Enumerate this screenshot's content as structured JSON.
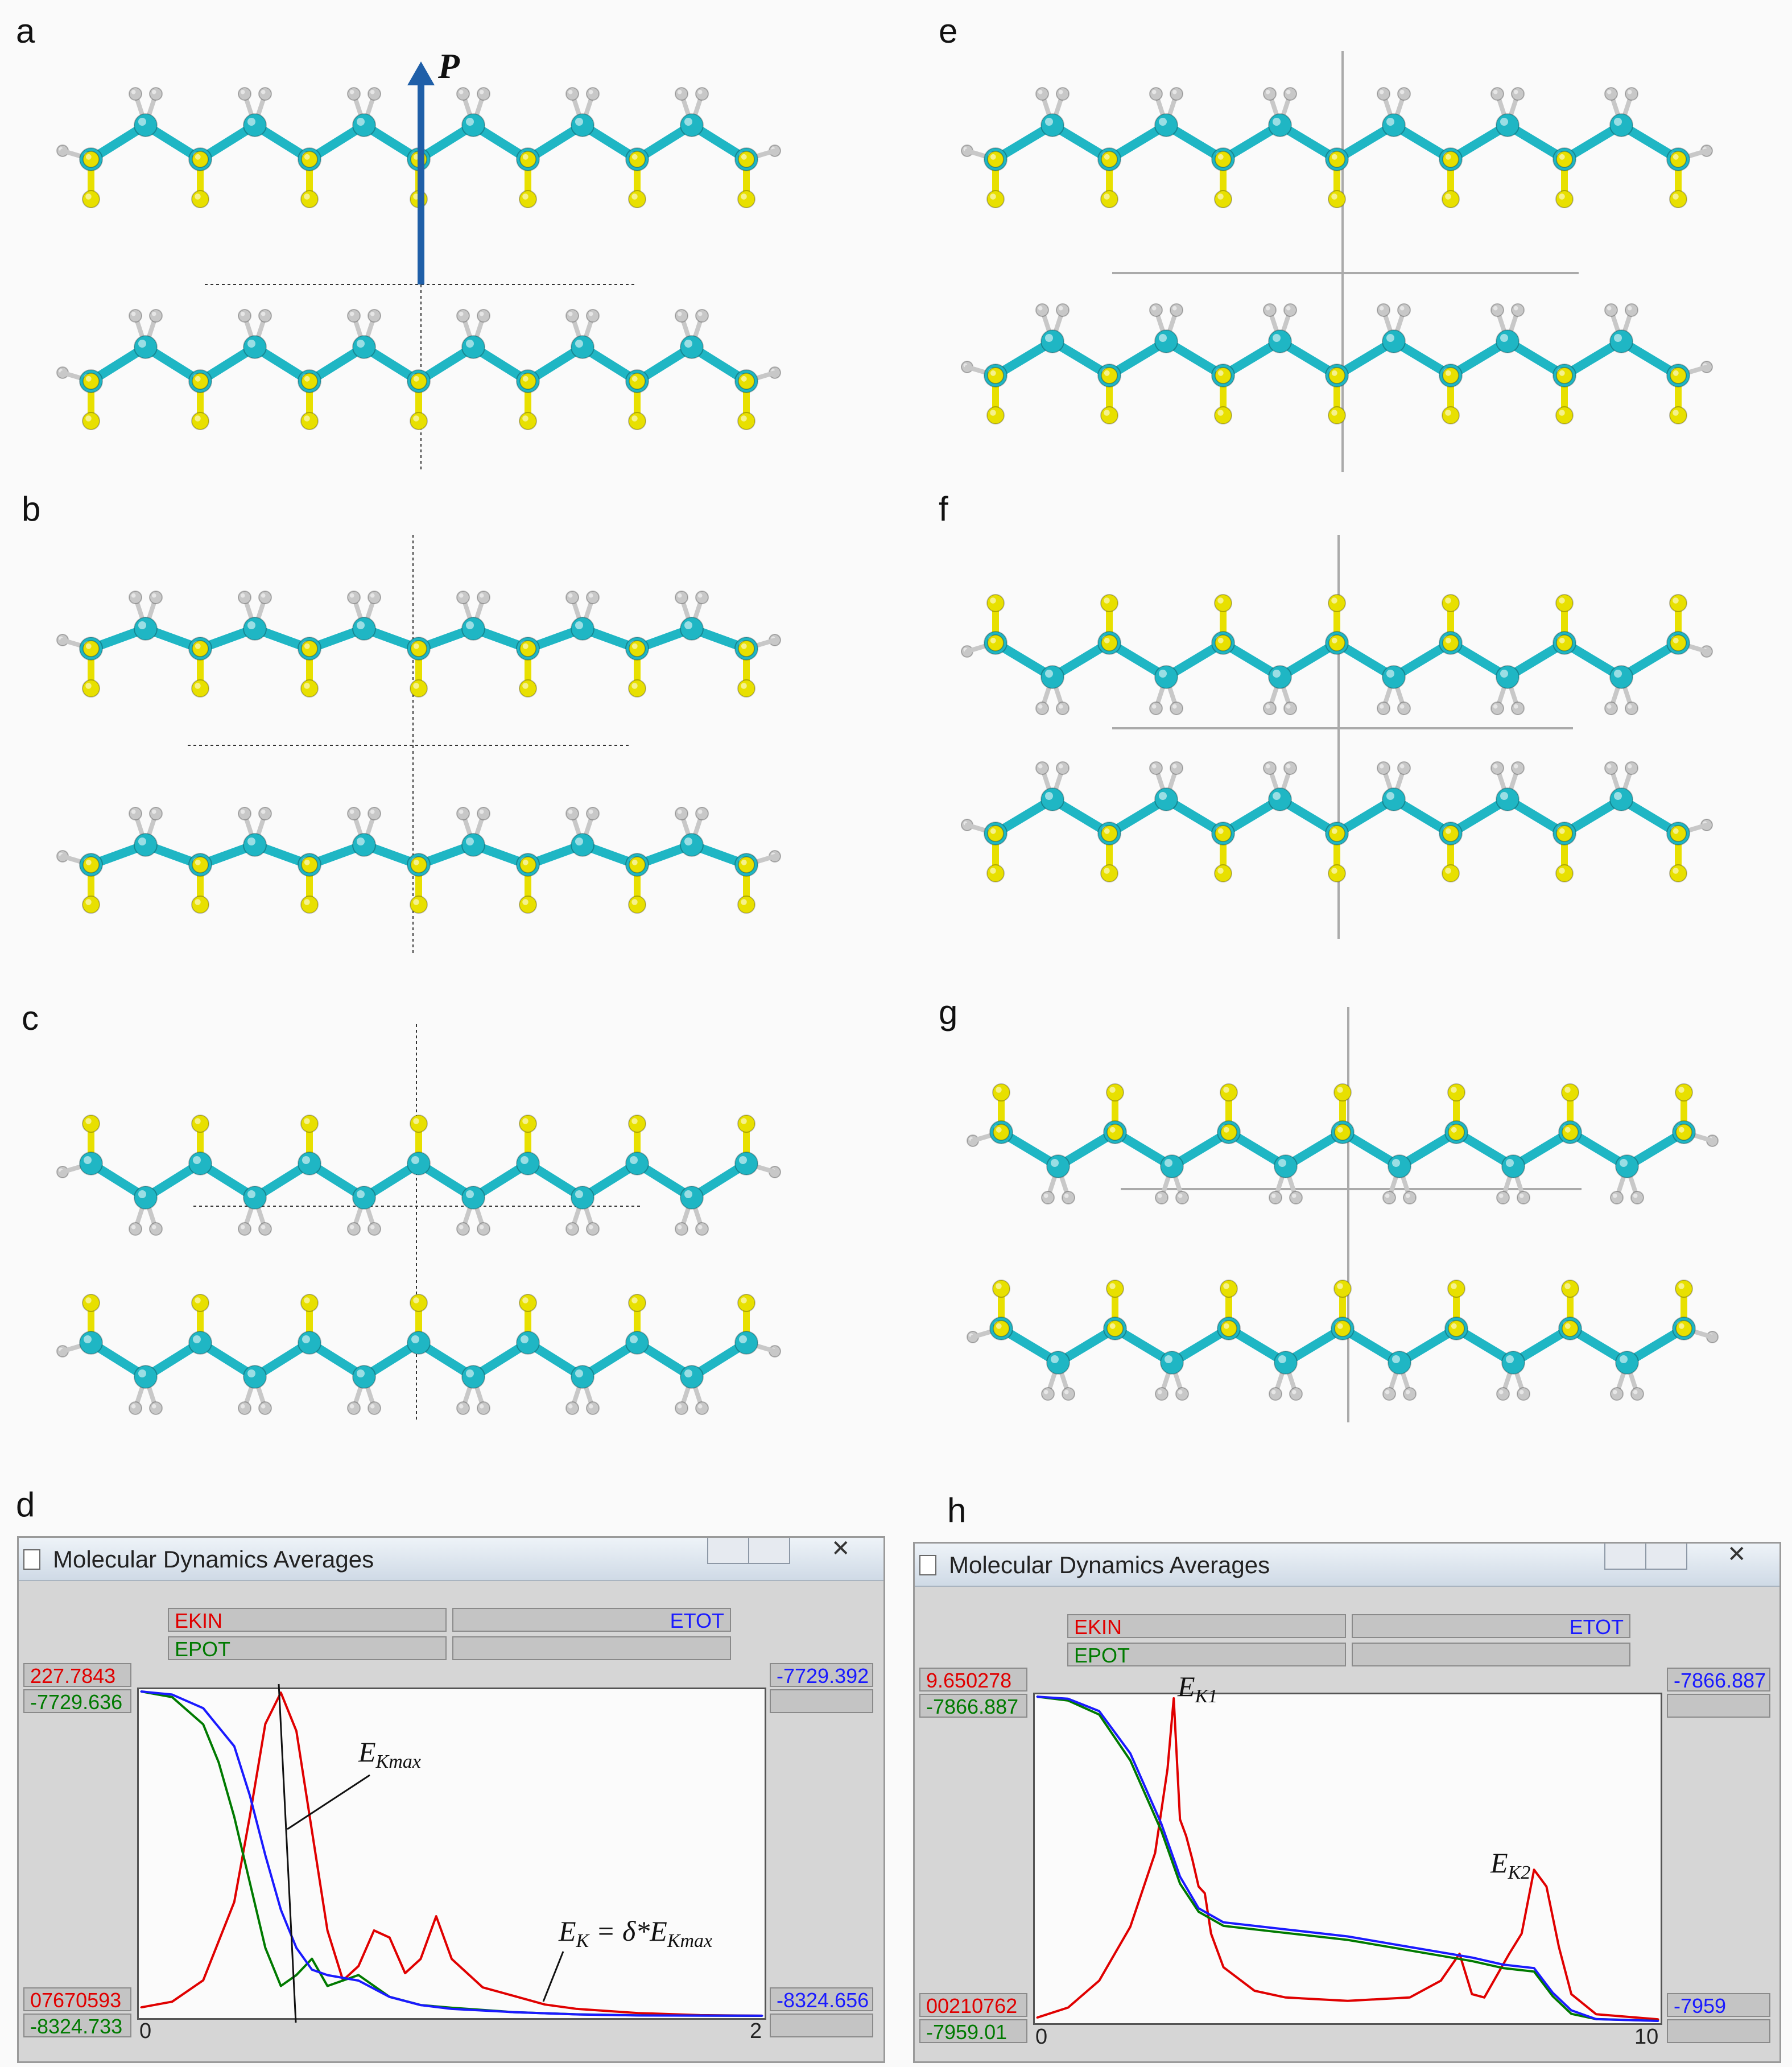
{
  "panel_letters": [
    "a",
    "b",
    "c",
    "d",
    "e",
    "f",
    "g",
    "h"
  ],
  "vector_label": "P",
  "colors": {
    "carbon": "#1fb6c4",
    "sulfur": "#e8e000",
    "hydrogen": "#c8c8c8",
    "ekin": "#e00000",
    "epot": "#007a00",
    "etot": "#1a1aff",
    "arrow": "#1f5fa8"
  },
  "window_d": {
    "title": "Molecular Dynamics Averages",
    "legend": {
      "ekin": "EKIN",
      "etot": "ETOT",
      "epot": "EPOT"
    },
    "left_top_ekin": "227.7843",
    "left_top_epot": "-7729.636",
    "left_bottom_ekin": "07670593",
    "left_bottom_epot": "-8324.733",
    "right_top_etot": "-7729.392",
    "right_bottom_etot": "-8324.656",
    "x_min": "0",
    "x_max": "2",
    "annotations": {
      "ekmax_base": "E",
      "ekmax_sub": "Kmax",
      "ek_base": "E",
      "ek_sub": "K",
      "ek_rest": " = δ*E",
      "ek_rest_sub": "Kmax"
    }
  },
  "window_h": {
    "title": "Molecular Dynamics Averages",
    "legend": {
      "ekin": "EKIN",
      "etot": "ETOT",
      "epot": "EPOT"
    },
    "left_top_ekin": "9.650278",
    "left_top_epot": "-7866.887",
    "left_bottom_ekin": "00210762",
    "left_bottom_epot": "-7959.01",
    "right_top_etot": "-7866.887",
    "right_bottom_etot": "-7959",
    "x_min": "0",
    "x_max": "10",
    "annotations": {
      "ek1_base": "E",
      "ek1_sub": "K1",
      "ek2_base": "E",
      "ek2_sub": "K2"
    }
  },
  "chart_data": [
    {
      "type": "line",
      "xlim": [
        0,
        2
      ],
      "ylim_ekin": [
        0.07670593,
        227.7843
      ],
      "ylim_epot": [
        -8324.733,
        -7729.636
      ],
      "ylim_etot": [
        -8324.656,
        -7729.392
      ],
      "series": [
        {
          "name": "EKIN",
          "x": [
            0,
            0.1,
            0.2,
            0.3,
            0.35,
            0.4,
            0.45,
            0.5,
            0.55,
            0.6,
            0.65,
            0.7,
            0.75,
            0.8,
            0.85,
            0.9,
            0.95,
            1.0,
            1.1,
            1.2,
            1.3,
            1.4,
            1.6,
            1.8,
            2.0
          ],
          "values": [
            6,
            10,
            25,
            80,
            140,
            205,
            227,
            200,
            130,
            60,
            25,
            35,
            60,
            55,
            30,
            40,
            70,
            40,
            20,
            14,
            8,
            5,
            2,
            0.5,
            0.1
          ]
        },
        {
          "name": "EPOT",
          "x": [
            0,
            0.1,
            0.2,
            0.25,
            0.3,
            0.35,
            0.4,
            0.45,
            0.5,
            0.55,
            0.6,
            0.7,
            0.8,
            0.9,
            1.0,
            1.2,
            1.4,
            1.6,
            2.0
          ],
          "values": [
            -7729.6,
            -7740,
            -7790,
            -7860,
            -7960,
            -8080,
            -8200,
            -8270,
            -8250,
            -8220,
            -8270,
            -8250,
            -8290,
            -8305,
            -8310,
            -8318,
            -8322,
            -8324,
            -8324.7
          ]
        },
        {
          "name": "ETOT",
          "x": [
            0,
            0.1,
            0.2,
            0.3,
            0.35,
            0.4,
            0.45,
            0.5,
            0.55,
            0.6,
            0.7,
            0.8,
            0.9,
            1.0,
            1.2,
            1.4,
            1.6,
            2.0
          ],
          "values": [
            -7729.4,
            -7735,
            -7760,
            -7830,
            -7920,
            -8030,
            -8130,
            -8200,
            -8240,
            -8250,
            -8260,
            -8290,
            -8305,
            -8312,
            -8318,
            -8322,
            -8324,
            -8324.6
          ]
        }
      ]
    },
    {
      "type": "line",
      "xlim": [
        0,
        10
      ],
      "ylim_ekin": [
        0.00210762,
        9.650278
      ],
      "ylim_epot": [
        -7959.01,
        -7866.887
      ],
      "ylim_etot": [
        -7959,
        -7866.887
      ],
      "series": [
        {
          "name": "EKIN",
          "x": [
            0,
            0.5,
            1.0,
            1.5,
            1.9,
            2.1,
            2.2,
            2.3,
            2.4,
            2.5,
            2.6,
            2.7,
            2.8,
            3.0,
            3.5,
            4.0,
            5.0,
            6.0,
            6.5,
            6.8,
            7.0,
            7.2,
            7.6,
            7.8,
            8.0,
            8.2,
            8.4,
            8.6,
            9.0,
            10.0
          ],
          "values": [
            0.1,
            0.4,
            1.2,
            2.8,
            5.0,
            7.5,
            9.6,
            6.0,
            5.5,
            4.8,
            4.0,
            3.8,
            2.6,
            1.6,
            0.9,
            0.7,
            0.6,
            0.7,
            1.2,
            2.0,
            0.8,
            0.7,
            2.0,
            2.6,
            4.5,
            4.0,
            2.2,
            0.8,
            0.2,
            0.05
          ]
        },
        {
          "name": "EPOT",
          "x": [
            0,
            0.5,
            1.0,
            1.5,
            2.0,
            2.3,
            2.6,
            3.0,
            4.0,
            5.0,
            6.0,
            7.0,
            7.5,
            8.0,
            8.3,
            8.6,
            9.0,
            10.0
          ],
          "values": [
            -7866.9,
            -7868,
            -7872,
            -7885,
            -7905,
            -7920,
            -7928,
            -7932,
            -7934,
            -7936,
            -7939,
            -7942,
            -7944,
            -7945,
            -7952,
            -7957,
            -7958.5,
            -7959
          ]
        },
        {
          "name": "ETOT",
          "x": [
            0,
            0.5,
            1.0,
            1.5,
            2.0,
            2.3,
            2.6,
            3.0,
            4.0,
            5.0,
            6.0,
            7.0,
            7.5,
            8.0,
            8.3,
            8.6,
            9.0,
            10.0
          ],
          "values": [
            -7866.9,
            -7867.5,
            -7871,
            -7883,
            -7903,
            -7918,
            -7927,
            -7931,
            -7933,
            -7935,
            -7938,
            -7941,
            -7943,
            -7944,
            -7951,
            -7956,
            -7958.5,
            -7959
          ]
        }
      ]
    }
  ]
}
